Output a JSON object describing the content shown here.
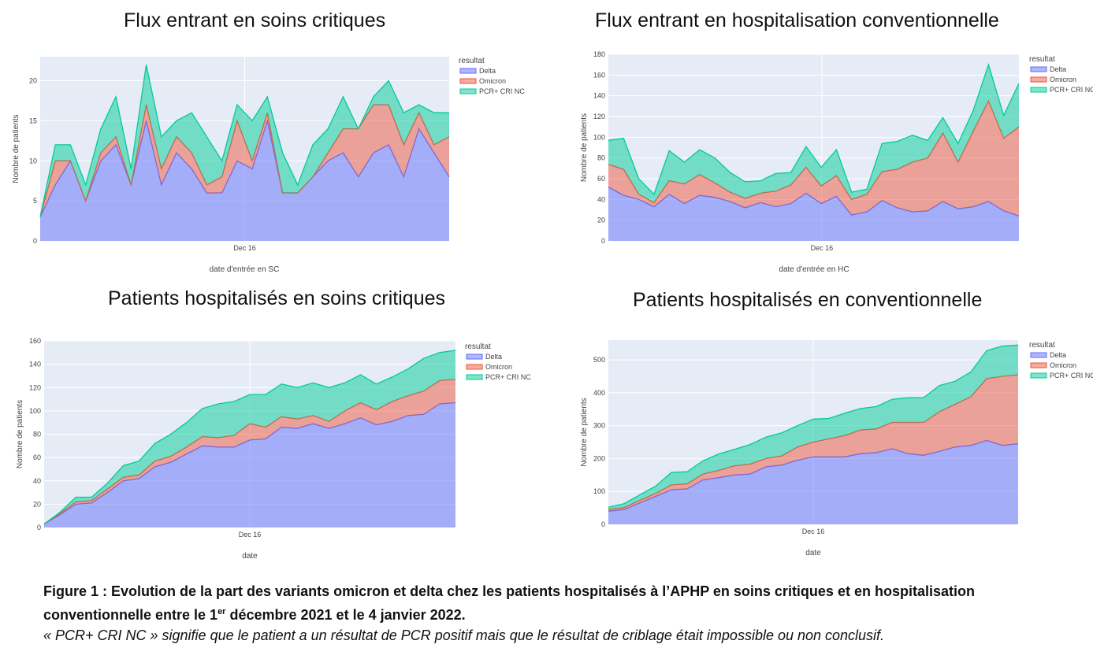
{
  "chart_data": [
    {
      "type": "area",
      "title": "Flux entrant en soins critiques",
      "xlabel": "date d'entrée en SC",
      "ylabel": "Nombre de patients",
      "x_tick_label": "Dec 16",
      "ylim": [
        0,
        23
      ],
      "yticks": [
        0,
        5,
        10,
        15,
        20
      ],
      "legend_title": "resultat",
      "series": [
        {
          "name": "Delta",
          "color": "#636efa",
          "values": [
            3,
            7,
            10,
            5,
            10,
            12,
            7,
            15,
            7,
            11,
            9,
            6,
            6,
            10,
            9,
            15,
            6,
            6,
            8,
            10,
            11,
            8,
            11,
            12,
            8,
            14,
            11,
            8
          ]
        },
        {
          "name": "Omicron",
          "color": "#ef553b",
          "values": [
            0,
            3,
            0,
            0,
            1,
            1,
            0,
            2,
            2,
            2,
            2,
            1,
            2,
            5,
            1,
            1,
            0,
            0,
            0,
            1,
            3,
            6,
            6,
            5,
            4,
            2,
            1,
            5
          ]
        },
        {
          "name": "PCR+ CRI NC",
          "color": "#00cc96",
          "values": [
            0,
            2,
            2,
            2,
            3,
            5,
            2,
            5,
            4,
            2,
            5,
            6,
            2,
            2,
            5,
            2,
            5,
            1,
            4,
            3,
            4,
            0,
            1,
            3,
            4,
            1,
            4,
            3
          ]
        }
      ]
    },
    {
      "type": "area",
      "title": "Flux entrant en hospitalisation conventionnelle",
      "xlabel": "date d'entrée en HC",
      "ylabel": "Nombre de patients",
      "x_tick_label": "Dec 16",
      "ylim": [
        0,
        180
      ],
      "yticks": [
        0,
        20,
        40,
        60,
        80,
        100,
        120,
        140,
        160,
        180
      ],
      "legend_title": "resultat",
      "series": [
        {
          "name": "Delta",
          "color": "#636efa",
          "values": [
            52,
            44,
            40,
            33,
            45,
            36,
            44,
            42,
            38,
            32,
            37,
            33,
            36,
            46,
            36,
            43,
            25,
            28,
            39,
            32,
            28,
            29,
            38,
            31,
            33,
            38,
            29,
            24
          ]
        },
        {
          "name": "Omicron",
          "color": "#ef553b",
          "values": [
            22,
            25,
            5,
            4,
            13,
            19,
            20,
            14,
            9,
            9,
            9,
            15,
            18,
            25,
            17,
            20,
            15,
            17,
            28,
            37,
            48,
            51,
            66,
            45,
            73,
            97,
            70,
            86
          ]
        },
        {
          "name": "PCR+ CRI NC",
          "color": "#00cc96",
          "values": [
            23,
            30,
            15,
            8,
            29,
            21,
            24,
            24,
            19,
            16,
            12,
            17,
            12,
            20,
            18,
            25,
            7,
            5,
            27,
            27,
            26,
            17,
            15,
            18,
            20,
            35,
            22,
            42
          ]
        }
      ]
    },
    {
      "type": "area",
      "title": "Patients hospitalisés en soins critiques",
      "xlabel": "date",
      "ylabel": "Nombre de patients",
      "x_tick_label": "Dec 16",
      "ylim": [
        0,
        160
      ],
      "yticks": [
        0,
        20,
        40,
        60,
        80,
        100,
        120,
        140,
        160
      ],
      "legend_title": "resultat",
      "series": [
        {
          "name": "Delta",
          "color": "#636efa",
          "values": [
            3,
            11,
            20,
            21,
            30,
            40,
            42,
            52,
            56,
            63,
            70,
            69,
            69,
            75,
            76,
            86,
            85,
            89,
            85,
            89,
            94,
            88,
            91,
            96,
            97,
            106,
            107
          ]
        },
        {
          "name": "Omicron",
          "color": "#ef553b",
          "values": [
            0,
            1,
            2,
            2,
            3,
            3,
            3,
            5,
            5,
            6,
            8,
            8,
            10,
            14,
            10,
            9,
            8,
            7,
            6,
            11,
            13,
            13,
            17,
            17,
            20,
            20,
            20
          ]
        },
        {
          "name": "PCR+ CRI NC",
          "color": "#00cc96",
          "values": [
            0,
            1,
            4,
            3,
            5,
            10,
            12,
            15,
            19,
            21,
            24,
            29,
            29,
            25,
            28,
            28,
            27,
            28,
            29,
            24,
            24,
            22,
            21,
            23,
            28,
            24,
            25
          ]
        }
      ]
    },
    {
      "type": "area",
      "title": "Patients hospitalisés en conventionnelle",
      "xlabel": "date",
      "ylabel": "Nombre de patients",
      "x_tick_label": "Dec 16",
      "ylim": [
        0,
        560
      ],
      "yticks": [
        0,
        100,
        200,
        300,
        400,
        500
      ],
      "legend_title": "resultat",
      "series": [
        {
          "name": "Delta",
          "color": "#636efa",
          "values": [
            40,
            45,
            65,
            85,
            105,
            108,
            135,
            142,
            150,
            153,
            175,
            180,
            195,
            205,
            205,
            205,
            215,
            218,
            230,
            215,
            210,
            222,
            235,
            240,
            255,
            240,
            245
          ]
        },
        {
          "name": "Omicron",
          "color": "#ef553b",
          "values": [
            5,
            6,
            8,
            9,
            15,
            15,
            18,
            22,
            28,
            30,
            25,
            28,
            40,
            45,
            55,
            65,
            72,
            72,
            80,
            95,
            100,
            120,
            130,
            148,
            188,
            210,
            210
          ]
        },
        {
          "name": "PCR+ CRI NC",
          "color": "#00cc96",
          "values": [
            7,
            12,
            17,
            22,
            38,
            37,
            40,
            50,
            50,
            60,
            65,
            70,
            65,
            70,
            62,
            68,
            65,
            68,
            70,
            75,
            75,
            80,
            70,
            75,
            85,
            92,
            90
          ]
        }
      ]
    }
  ],
  "caption": {
    "line1_bold": "Figure 1 : Evolution de la part des variants omicron et delta chez les patients hospitalisés à l’APHP en soins critiques et en hospitalisation conventionnelle entre le 1",
    "sup": "er",
    "line1_bold_end": " décembre 2021 et le 4 janvier 2022.",
    "line2_italic": "« PCR+ CRI NC » signifie que le patient a un résultat de PCR positif mais que le résultat de criblage était impossible ou non conclusif."
  }
}
